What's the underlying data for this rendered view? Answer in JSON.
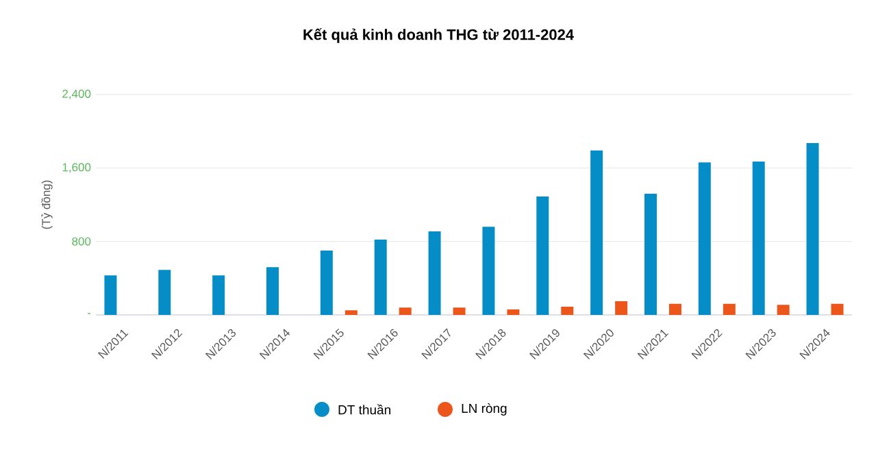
{
  "chart_data": {
    "type": "bar",
    "title": "Kết quả kinh doanh THG từ 2011-2024",
    "ylabel": "(Tỷ đồng)",
    "categories": [
      "N/2011",
      "N/2012",
      "N/2013",
      "N/2014",
      "N/2015",
      "N/2016",
      "N/2017",
      "N/2018",
      "N/2019",
      "N/2020",
      "N/2021",
      "N/2022",
      "N/2023",
      "N/2024"
    ],
    "series": [
      {
        "name": "DT thuần",
        "color": "#058dc7",
        "values": [
          430,
          490,
          430,
          520,
          700,
          820,
          910,
          960,
          1290,
          1790,
          1320,
          1660,
          1670,
          1870
        ]
      },
      {
        "name": "LN ròng",
        "color": "#ed561b",
        "values": [
          null,
          null,
          null,
          null,
          50,
          80,
          80,
          60,
          90,
          150,
          120,
          120,
          110,
          120
        ]
      }
    ],
    "ylim": [
      0,
      2400
    ],
    "yticks": [
      {
        "value": 0,
        "label": "-"
      },
      {
        "value": 800,
        "label": "800"
      },
      {
        "value": 1600,
        "label": "1,600"
      },
      {
        "value": 2400,
        "label": "2,400"
      }
    ],
    "grid": "y",
    "legend": "bottom"
  }
}
